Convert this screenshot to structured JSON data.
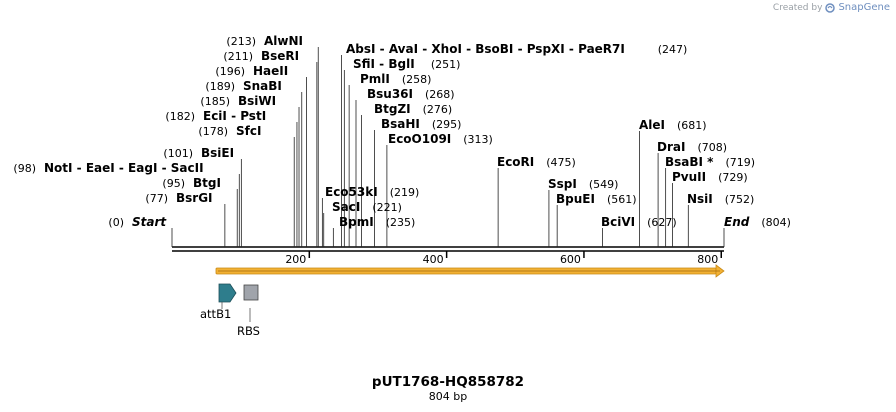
{
  "credit": {
    "prefix": "Created by",
    "brand": "SnapGene"
  },
  "map": {
    "title": "pUT1768-HQ858782",
    "length_label": "804 bp",
    "length": 804,
    "tick_labels": [
      "200",
      "400",
      "600",
      "800"
    ]
  },
  "sites": [
    {
      "name": "Start",
      "pos": 0,
      "pos_label": "(0)",
      "italic": true
    },
    {
      "name": "BsrGI",
      "pos": 77,
      "pos_label": "(77)"
    },
    {
      "name": "BtgI",
      "pos": 95,
      "pos_label": "(95)"
    },
    {
      "name": "NotI  - EaeI  - EagI  - SacII",
      "pos": 98,
      "pos_label": "(98)"
    },
    {
      "name": "BsiEI",
      "pos": 101,
      "pos_label": "(101)"
    },
    {
      "name": "SfcI",
      "pos": 178,
      "pos_label": "(178)"
    },
    {
      "name": "EciI  - PstI",
      "pos": 182,
      "pos_label": "(182)"
    },
    {
      "name": "BsiWI",
      "pos": 185,
      "pos_label": "(185)"
    },
    {
      "name": "SnaBI",
      "pos": 189,
      "pos_label": "(189)"
    },
    {
      "name": "HaeII",
      "pos": 196,
      "pos_label": "(196)"
    },
    {
      "name": "BseRI",
      "pos": 211,
      "pos_label": "(211)"
    },
    {
      "name": "AlwNI",
      "pos": 213,
      "pos_label": "(213)"
    },
    {
      "name": "Eco53kI",
      "pos": 219,
      "pos_label": "(219)"
    },
    {
      "name": "SacI",
      "pos": 221,
      "pos_label": "(221)"
    },
    {
      "name": "BpmI",
      "pos": 235,
      "pos_label": "(235)"
    },
    {
      "name": "AbsI  - AvaI  - XhoI  - BsoBI  - PspXI  - PaeR7I",
      "pos": 247,
      "pos_label": "(247)"
    },
    {
      "name": "SfiI  - BglI",
      "pos": 251,
      "pos_label": "(251)"
    },
    {
      "name": "PmlI",
      "pos": 258,
      "pos_label": "(258)"
    },
    {
      "name": "Bsu36I",
      "pos": 268,
      "pos_label": "(268)"
    },
    {
      "name": "BtgZI",
      "pos": 276,
      "pos_label": "(276)"
    },
    {
      "name": "BsaHI",
      "pos": 295,
      "pos_label": "(295)"
    },
    {
      "name": "EcoO109I",
      "pos": 313,
      "pos_label": "(313)"
    },
    {
      "name": "EcoRI",
      "pos": 475,
      "pos_label": "(475)"
    },
    {
      "name": "SspI",
      "pos": 549,
      "pos_label": "(549)"
    },
    {
      "name": "BpuEI",
      "pos": 561,
      "pos_label": "(561)"
    },
    {
      "name": "BciVI",
      "pos": 627,
      "pos_label": "(627)"
    },
    {
      "name": "AleI",
      "pos": 681,
      "pos_label": "(681)"
    },
    {
      "name": "DraI",
      "pos": 708,
      "pos_label": "(708)"
    },
    {
      "name": "BsaBI *",
      "pos": 719,
      "pos_label": "(719)"
    },
    {
      "name": "PvuII",
      "pos": 729,
      "pos_label": "(729)"
    },
    {
      "name": "NsiI",
      "pos": 752,
      "pos_label": "(752)"
    },
    {
      "name": "End",
      "pos": 804,
      "pos_label": "(804)",
      "italic": true
    }
  ],
  "features": [
    {
      "name": "attB1",
      "color": "#2e7d8c",
      "shape": "arrow"
    },
    {
      "name": "RBS",
      "color": "#a0a4ab",
      "shape": "box"
    }
  ],
  "orf_color": "#f2b134"
}
